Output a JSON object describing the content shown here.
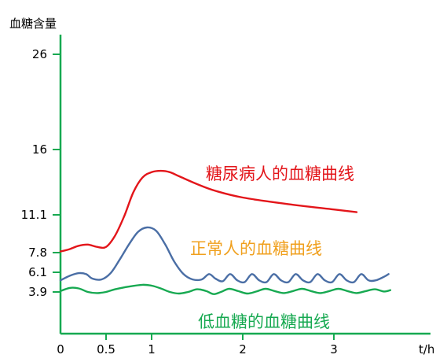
{
  "chart_data": {
    "type": "line",
    "ylabel": "血糖含量",
    "xlabel": "t/h",
    "x_ticks": [
      {
        "value": 0,
        "label": "0"
      },
      {
        "value": 0.5,
        "label": "0.5"
      },
      {
        "value": 1,
        "label": "1"
      },
      {
        "value": 2,
        "label": "2"
      },
      {
        "value": 3,
        "label": "3"
      }
    ],
    "y_ticks": [
      {
        "value": 3.9,
        "label": "3.9"
      },
      {
        "value": 6.1,
        "label": "6.1"
      },
      {
        "value": 7.8,
        "label": "7.8"
      },
      {
        "value": 11.1,
        "label": "11.1"
      },
      {
        "value": 16,
        "label": "16"
      },
      {
        "value": 26,
        "label": "26"
      }
    ],
    "series": [
      {
        "name": "糖尿病人的血糖曲线",
        "color": "#e3151a",
        "points": [
          [
            0,
            7.9
          ],
          [
            0.1,
            8.1
          ],
          [
            0.2,
            8.4
          ],
          [
            0.3,
            8.5
          ],
          [
            0.4,
            8.3
          ],
          [
            0.5,
            8.3
          ],
          [
            0.6,
            9.3
          ],
          [
            0.7,
            11.0
          ],
          [
            0.8,
            12.8
          ],
          [
            0.9,
            13.9
          ],
          [
            1.0,
            14.3
          ],
          [
            1.1,
            14.4
          ],
          [
            1.2,
            14.3
          ],
          [
            1.3,
            14.0
          ],
          [
            1.5,
            13.4
          ],
          [
            1.7,
            12.9
          ],
          [
            2.0,
            12.4
          ],
          [
            2.5,
            11.9
          ],
          [
            3.0,
            11.5
          ],
          [
            3.25,
            11.3
          ]
        ]
      },
      {
        "name": "正常人的血糖曲线",
        "color": "#4a6ea5",
        "points": [
          [
            0,
            5.2
          ],
          [
            0.1,
            5.7
          ],
          [
            0.2,
            6.0
          ],
          [
            0.28,
            5.9
          ],
          [
            0.35,
            5.4
          ],
          [
            0.45,
            5.3
          ],
          [
            0.55,
            6.0
          ],
          [
            0.65,
            7.2
          ],
          [
            0.75,
            8.5
          ],
          [
            0.85,
            9.6
          ],
          [
            0.95,
            10.0
          ],
          [
            1.05,
            9.7
          ],
          [
            1.15,
            8.5
          ],
          [
            1.25,
            7.0
          ],
          [
            1.35,
            5.9
          ],
          [
            1.45,
            5.3
          ],
          [
            1.55,
            5.3
          ],
          [
            1.63,
            5.9
          ],
          [
            1.7,
            5.4
          ],
          [
            1.78,
            5.1
          ],
          [
            1.86,
            5.9
          ],
          [
            1.94,
            5.2
          ],
          [
            2.02,
            5.0
          ],
          [
            2.1,
            5.9
          ],
          [
            2.18,
            5.2
          ],
          [
            2.26,
            5.0
          ],
          [
            2.34,
            5.9
          ],
          [
            2.42,
            5.2
          ],
          [
            2.5,
            5.0
          ],
          [
            2.58,
            5.9
          ],
          [
            2.66,
            5.2
          ],
          [
            2.74,
            5.0
          ],
          [
            2.82,
            5.9
          ],
          [
            2.9,
            5.2
          ],
          [
            2.98,
            5.0
          ],
          [
            3.06,
            5.9
          ],
          [
            3.14,
            5.2
          ],
          [
            3.22,
            5.0
          ],
          [
            3.3,
            5.9
          ],
          [
            3.38,
            5.2
          ],
          [
            3.46,
            5.2
          ],
          [
            3.55,
            5.6
          ],
          [
            3.6,
            5.9
          ]
        ]
      },
      {
        "name": "低血糖的血糖曲线",
        "color": "#17a951",
        "points": [
          [
            0,
            4.0
          ],
          [
            0.1,
            4.35
          ],
          [
            0.2,
            4.3
          ],
          [
            0.3,
            3.9
          ],
          [
            0.4,
            3.8
          ],
          [
            0.5,
            3.9
          ],
          [
            0.6,
            4.2
          ],
          [
            0.75,
            4.5
          ],
          [
            0.9,
            4.7
          ],
          [
            1.0,
            4.6
          ],
          [
            1.1,
            4.3
          ],
          [
            1.2,
            3.9
          ],
          [
            1.3,
            3.75
          ],
          [
            1.4,
            3.9
          ],
          [
            1.5,
            4.2
          ],
          [
            1.6,
            4.0
          ],
          [
            1.68,
            3.7
          ],
          [
            1.76,
            3.9
          ],
          [
            1.85,
            4.25
          ],
          [
            1.95,
            4.0
          ],
          [
            2.05,
            3.75
          ],
          [
            2.15,
            3.95
          ],
          [
            2.25,
            4.25
          ],
          [
            2.35,
            4.0
          ],
          [
            2.45,
            3.8
          ],
          [
            2.55,
            4.0
          ],
          [
            2.65,
            4.25
          ],
          [
            2.75,
            4.0
          ],
          [
            2.85,
            3.8
          ],
          [
            2.95,
            4.0
          ],
          [
            3.05,
            4.25
          ],
          [
            3.15,
            4.0
          ],
          [
            3.25,
            3.8
          ],
          [
            3.35,
            4.0
          ],
          [
            3.45,
            4.2
          ],
          [
            3.55,
            3.95
          ],
          [
            3.62,
            4.1
          ]
        ]
      }
    ]
  }
}
